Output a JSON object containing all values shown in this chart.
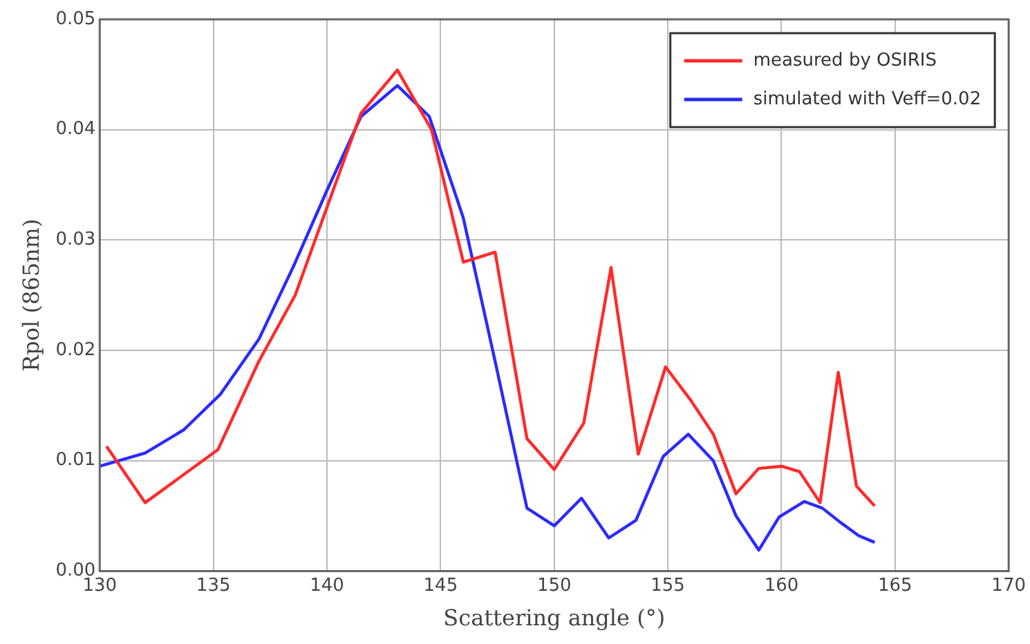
{
  "chart_data": {
    "type": "line",
    "xlabel": "Scattering angle (°)",
    "ylabel": "Rpol (865nm)",
    "xlim": [
      130,
      170
    ],
    "xticks": [
      130,
      135,
      140,
      145,
      150,
      155,
      160,
      165,
      170
    ],
    "ylim": [
      0,
      0.05
    ],
    "yticks": [
      {
        "value": 0,
        "label": "0.00"
      },
      {
        "value": 0.01,
        "label": "0.01"
      },
      {
        "value": 0.02,
        "label": "0.02"
      },
      {
        "value": 0.03,
        "label": "0.03"
      },
      {
        "value": 0.04,
        "label": "0.04"
      },
      {
        "value": 0.05,
        "label": "0.05"
      }
    ],
    "grid": true,
    "legend": "top right",
    "marker": "none",
    "line_style": "solid",
    "series": [
      {
        "name": "measured by OSIRIS",
        "color": "#ff2a2a",
        "x": [
          130.3,
          132,
          135.2,
          137,
          138.6,
          141.5,
          143.1,
          144.6,
          146,
          147.4,
          148.8,
          150,
          151.3,
          152.5,
          153.7,
          154.9,
          156,
          157,
          158,
          159,
          160,
          160.8,
          161.7,
          162.5,
          163.3,
          164.1
        ],
        "values": [
          0.0113,
          0.0062,
          0.011,
          0.019,
          0.025,
          0.0415,
          0.0454,
          0.04,
          0.028,
          0.0289,
          0.012,
          0.0092,
          0.0134,
          0.0275,
          0.0106,
          0.0185,
          0.0155,
          0.0124,
          0.007,
          0.0093,
          0.0095,
          0.009,
          0.0062,
          0.018,
          0.0077,
          0.0059
        ]
      },
      {
        "name": "simulated with Veff=0.02",
        "color": "#2a2aff",
        "x": [
          130,
          132,
          133.7,
          135.3,
          137,
          138.5,
          140,
          141.5,
          143.1,
          144.5,
          146,
          147.4,
          148.8,
          150,
          151.2,
          152.4,
          153.6,
          154.8,
          155.9,
          157,
          158,
          159,
          159.9,
          161,
          161.8,
          162.6,
          163.4,
          164.1
        ],
        "values": [
          0.0095,
          0.0107,
          0.0128,
          0.016,
          0.021,
          0.0275,
          0.0345,
          0.0412,
          0.044,
          0.0412,
          0.032,
          0.019,
          0.0057,
          0.0041,
          0.0066,
          0.003,
          0.0046,
          0.0104,
          0.0124,
          0.01,
          0.005,
          0.0019,
          0.0049,
          0.0063,
          0.0057,
          0.0044,
          0.0032,
          0.0026
        ]
      }
    ]
  }
}
